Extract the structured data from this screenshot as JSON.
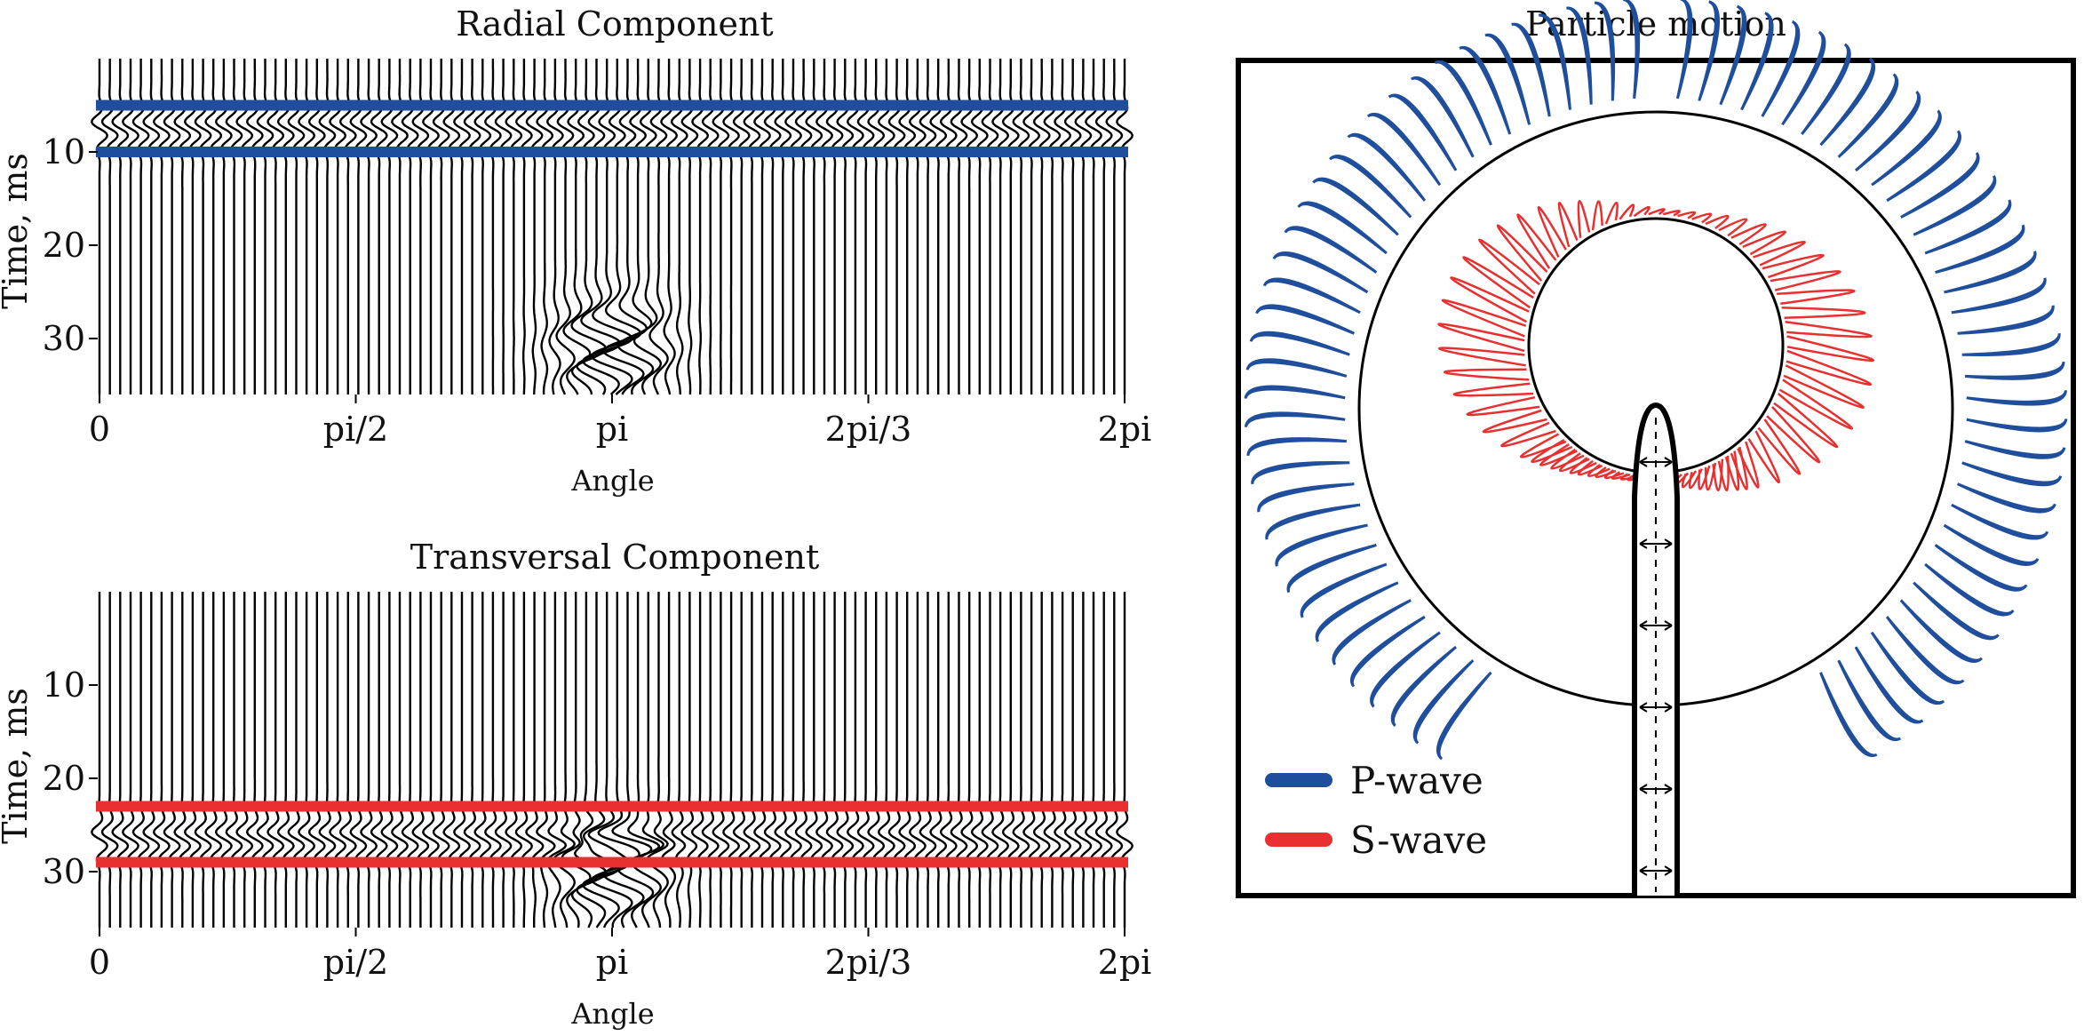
{
  "chart_data": [
    {
      "type": "line",
      "title": "Radial Component",
      "xlabel": "Angle",
      "ylabel": "Time, ms",
      "x_tick_labels": [
        "0",
        "pi/2",
        "pi",
        "2pi/3",
        "2pi"
      ],
      "y_ticks": [
        10,
        20,
        30
      ],
      "ylim": [
        36,
        0
      ],
      "num_traces": 100,
      "highlight_color": "#1f4e9c",
      "highlight_times": [
        5,
        10
      ],
      "wave_arrival_ms": 7.5,
      "anomaly_angle": "pi",
      "anomaly_time_ms": 29
    },
    {
      "type": "line",
      "title": "Transversal Component",
      "xlabel": "Angle",
      "ylabel": "Time, ms",
      "x_tick_labels": [
        "0",
        "pi/2",
        "pi",
        "2pi/3",
        "2pi"
      ],
      "y_ticks": [
        10,
        20,
        30
      ],
      "ylim": [
        36,
        0
      ],
      "num_traces": 100,
      "highlight_color": "#e83030",
      "highlight_times": [
        23,
        29
      ],
      "wave_arrival_ms": 26.5,
      "anomaly_angle": "pi",
      "anomaly_time_ms": 30
    },
    {
      "type": "scatter",
      "title": "Particle motion",
      "legend": [
        {
          "label": "P-wave",
          "color": "#1f4e9c"
        },
        {
          "label": "S-wave",
          "color": "#e83030"
        }
      ],
      "legend_position": "bottom-left",
      "p_wave_lobes": 90,
      "s_wave_lobes": 70
    }
  ]
}
